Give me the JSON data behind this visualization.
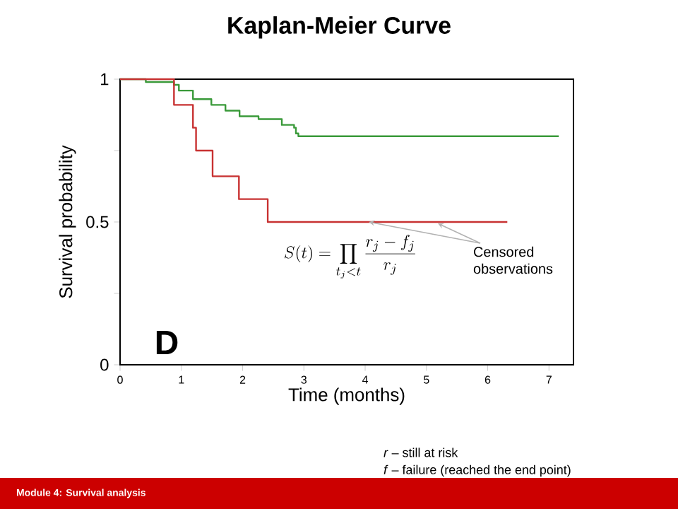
{
  "chart_data": {
    "type": "step",
    "title": "Kaplan-Meier Curve",
    "xlabel": "Time (months)",
    "ylabel": "Survival probability",
    "series": [
      {
        "color": "#3a9a3a",
        "x": [
          0,
          0.42,
          0.88,
          0.96,
          1.19,
          1.49,
          1.72,
          1.95,
          2.26,
          2.64,
          2.84,
          2.87,
          2.91,
          7.16
        ],
        "values": [
          1,
          0.99,
          0.98,
          0.96,
          0.93,
          0.91,
          0.89,
          0.87,
          0.86,
          0.84,
          0.83,
          0.81,
          0.8,
          0.8
        ]
      },
      {
        "color": "#c83232",
        "x": [
          0,
          0.88,
          1.19,
          1.24,
          1.51,
          1.94,
          2.41,
          6.32
        ],
        "values": [
          1,
          0.91,
          0.83,
          0.75,
          0.66,
          0.58,
          0.5,
          0.5
        ]
      }
    ],
    "xlim": [
      0,
      7.4
    ],
    "ylim": [
      0,
      1
    ],
    "xticks": [
      0,
      1,
      2,
      3,
      4,
      5,
      6,
      7
    ],
    "yticks": [
      0,
      {
        "value": 0.25,
        "label": null
      },
      0.5,
      {
        "value": 0.75,
        "label": null
      },
      1
    ],
    "marker": "none",
    "annotations": [
      "S(t)=\\prod_{t_j<t}\\frac{r_j-f_j}{r_j}",
      "D",
      {
        "text": "Censored observations",
        "x": 4.06,
        "y": 0.5
      },
      "*r* – still at risk",
      "*f* – failure (reached the end point)",
      "Module 4: Survival analysis"
    ]
  }
}
